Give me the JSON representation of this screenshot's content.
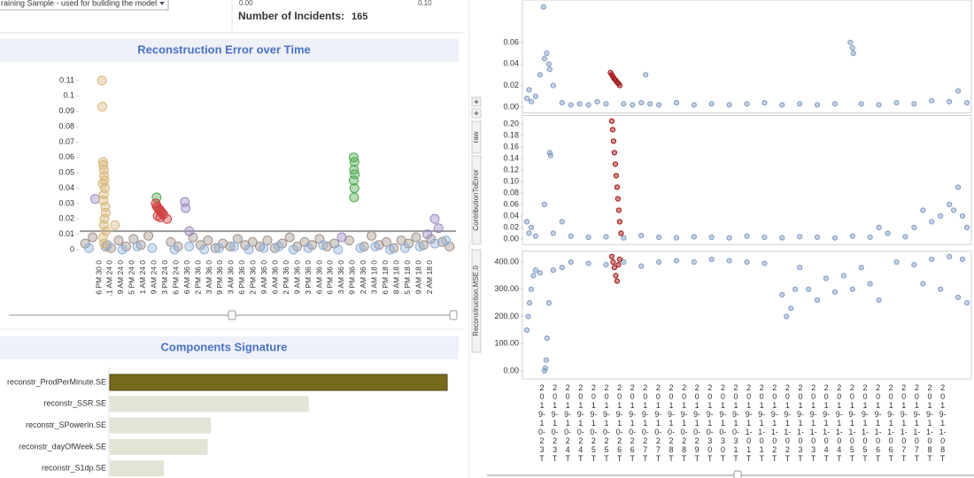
{
  "header": {
    "dropdown": "raining Sample - used for building the model",
    "range_min": "0.00",
    "range_max": "0.10",
    "incidents_label": "Number of Incidents:",
    "incidents_value": "165"
  },
  "side_tabs": [
    "raw",
    "ContributionToError",
    "Reconstruction.MSE.0"
  ],
  "chart_data": [
    {
      "type": "scatter",
      "title": "Reconstruction Error over Time",
      "categories": [
        "6 PM 30 0",
        ".1 AM 24 0",
        "9 AM 24 0",
        "5 PM 24 0",
        "1 AM 24 0",
        "9 AM 24 0",
        "3 PM 24 0",
        "6 PM 24 0",
        "6 AM 36 0",
        "2 PM 36 0",
        "3 AM 36 0",
        "9 PM 36 0",
        "3 AM 36 0",
        "6 PM 36 0",
        "2 PM 36 0",
        "9 AM 36 0",
        "6 AM 36 0",
        "2 PM 36 0",
        "9 AM 36 0",
        "3 PM 36 0",
        "6 AM 36 0",
        "6 PM 36 0",
        "3 AM 36 0",
        "9 PM 36 0",
        "2 AM 36 0",
        "3 AM 18 0",
        "6 PM 18 0",
        "8 AM 18 0",
        "5 PM 18 0",
        "9 AM 18 0",
        "2 AM 18 0"
      ],
      "xlim": [
        0,
        100
      ],
      "ylim": [
        -0.005,
        0.115
      ],
      "yticks": [
        0,
        0.01,
        0.02,
        0.03,
        0.04,
        0.05,
        0.06,
        0.07,
        0.08,
        0.09,
        0.1,
        0.11
      ],
      "reference_line": 0.012,
      "series": [
        {
          "color": "#a09088",
          "x": [
            1,
            3,
            6.5,
            8,
            10,
            12,
            14,
            16,
            18,
            24,
            26,
            30,
            32,
            34,
            36,
            38,
            40,
            42,
            44,
            46,
            48,
            50,
            52,
            54,
            56,
            58,
            60,
            62,
            64,
            66,
            68,
            72,
            76,
            78,
            80,
            82,
            84,
            86,
            88,
            90,
            92,
            94,
            97,
            99
          ],
          "values": [
            0.004,
            0.008,
            0.002,
            0.001,
            0.006,
            0.002,
            0.007,
            0.003,
            0.009,
            0.005,
            0.002,
            0.008,
            0.003,
            0.006,
            0.001,
            0.004,
            0.002,
            0.007,
            0.003,
            0.005,
            0.002,
            0.006,
            0.001,
            0.004,
            0.008,
            0.002,
            0.005,
            0.003,
            0.007,
            0.002,
            0.004,
            0.006,
            0.002,
            0.009,
            0.003,
            0.005,
            0.001,
            0.006,
            0.004,
            0.008,
            0.003,
            0.007,
            0.005,
            0.002
          ]
        },
        {
          "color": "#8fb0d8",
          "x": [
            2,
            7,
            11,
            15,
            19,
            25,
            29,
            33,
            37,
            41,
            45,
            49,
            53,
            57,
            61,
            65,
            69,
            75,
            79,
            83,
            87,
            91,
            95,
            98
          ],
          "values": [
            0.001,
            0.003,
            0,
            0.002,
            0.001,
            0,
            0.002,
            0,
            0.001,
            0.002,
            0,
            0.001,
            0.002,
            0,
            0.001,
            0.003,
            0,
            0.001,
            0.002,
            0,
            0.001,
            0.002,
            0.004,
            0.006
          ]
        },
        {
          "color": "#9a88c0",
          "x": [
            3.7,
            27.8,
            28,
            29,
            70,
            93,
            95,
            96
          ],
          "values": [
            0.033,
            0.031,
            0.027,
            0.012,
            0.008,
            0.01,
            0.02,
            0.014
          ]
        },
        {
          "color": "#d9b77a",
          "x": [
            5.5,
            5.6,
            5.8,
            5.9,
            6,
            6.1,
            6.2,
            5.7,
            6.3,
            6,
            5.9,
            6.4,
            6.5,
            6.2,
            6,
            6.6,
            9,
            5.8,
            6.1
          ],
          "values": [
            0.11,
            0.093,
            0.057,
            0.055,
            0.052,
            0.048,
            0.045,
            0.043,
            0.04,
            0.036,
            0.032,
            0.028,
            0.024,
            0.02,
            0.016,
            0.012,
            0.016,
            0.008,
            0.004
          ]
        },
        {
          "color": "#4caa4c",
          "x": [
            20.2,
            73.2,
            73.4,
            73.3,
            73.5,
            73.2,
            73.4,
            73.3
          ],
          "values": [
            0.034,
            0.06,
            0.057,
            0.052,
            0.049,
            0.045,
            0.04,
            0.034
          ]
        },
        {
          "color": "#d04040",
          "x": [
            20,
            20.3,
            20.6,
            21,
            21.3,
            21.6,
            22,
            20.5,
            21.2,
            23
          ],
          "values": [
            0.03,
            0.028,
            0.027,
            0.026,
            0.025,
            0.024,
            0.023,
            0.022,
            0.021,
            0.02
          ]
        }
      ]
    },
    {
      "type": "bar",
      "orientation": "horizontal",
      "title": "Components Signature",
      "categories": [
        "reconstr_ProdPerMinute.SE",
        "reconstr_SSR.SE",
        "reconstr_SPowerIn.SE",
        "reconstr_dayOfWeek.SE",
        "reconstr_S1dp.SE"
      ],
      "values": [
        100,
        59,
        30,
        29,
        16
      ],
      "colors": [
        "#786a1c",
        "#e4e4d6",
        "#e4e4d6",
        "#e4e4d6",
        "#e4e4d6"
      ]
    },
    {
      "type": "scatter",
      "xlim": [
        0,
        100
      ],
      "ylim": [
        -0.003,
        0.1
      ],
      "yticks": [
        {
          "value": 0,
          "label": "0.00"
        },
        {
          "value": 0.02,
          "label": "0.02"
        },
        {
          "value": 0.04,
          "label": "0.04"
        },
        {
          "value": 0.06,
          "label": "0.06"
        }
      ],
      "series": [
        {
          "color": "#7f9cc0",
          "x": [
            0,
            1,
            2,
            3,
            4,
            4.5,
            5,
            5.2,
            6,
            8,
            10,
            12,
            14,
            16,
            18,
            22,
            24,
            26,
            27,
            28,
            30,
            34,
            38,
            42,
            46,
            50,
            54,
            58,
            62,
            66,
            70,
            73.5,
            74,
            74.2,
            76,
            80,
            84,
            88,
            92,
            96,
            98,
            100,
            0.5,
            3.8
          ],
          "values": [
            0.008,
            0.005,
            0.01,
            0.03,
            0.045,
            0.05,
            0.04,
            0.035,
            0.02,
            0.004,
            0.002,
            0.003,
            0.002,
            0.005,
            0.003,
            0.003,
            0.002,
            0.004,
            0.03,
            0.003,
            0.002,
            0.004,
            0.002,
            0.003,
            0.002,
            0.003,
            0.004,
            0.002,
            0.003,
            0.002,
            0.003,
            0.06,
            0.055,
            0.05,
            0.003,
            0.002,
            0.004,
            0.003,
            0.006,
            0.005,
            0.015,
            0.004,
            0.016,
            0.093
          ]
        },
        {
          "color": "#a01010",
          "x": [
            19,
            19.3,
            19.6,
            19.9,
            20.2,
            20.5,
            20.8,
            21.1
          ],
          "values": [
            0.032,
            0.03,
            0.028,
            0.026,
            0.025,
            0.023,
            0.022,
            0.02
          ]
        }
      ]
    },
    {
      "type": "scatter",
      "xlim": [
        0,
        100
      ],
      "ylim": [
        -0.005,
        0.21
      ],
      "yticks": [
        {
          "value": 0,
          "label": "0.00"
        },
        {
          "value": 0.02,
          "label": "0.02"
        },
        {
          "value": 0.04,
          "label": "0.04"
        },
        {
          "value": 0.06,
          "label": "0.06"
        },
        {
          "value": 0.08,
          "label": "0.08"
        },
        {
          "value": 0.1,
          "label": "0.10"
        },
        {
          "value": 0.12,
          "label": "0.12"
        },
        {
          "value": 0.14,
          "label": "0.14"
        },
        {
          "value": 0.16,
          "label": "0.16"
        },
        {
          "value": 0.18,
          "label": "0.18"
        },
        {
          "value": 0.2,
          "label": "0.20"
        }
      ],
      "series": [
        {
          "color": "#7f9cc0",
          "x": [
            0,
            0.5,
            1,
            2,
            4,
            5.2,
            5.4,
            6,
            8,
            10,
            14,
            18,
            22,
            26,
            30,
            34,
            38,
            42,
            46,
            50,
            54,
            58,
            62,
            66,
            70,
            74,
            78,
            80,
            82,
            86,
            88,
            90,
            92,
            94,
            96,
            97,
            98,
            99,
            100
          ],
          "values": [
            0.03,
            0.01,
            0.02,
            0.005,
            0.06,
            0.15,
            0.145,
            0.01,
            0.03,
            0.005,
            0.003,
            0.004,
            0.002,
            0.006,
            0.003,
            0.002,
            0.004,
            0.003,
            0.002,
            0.005,
            0.003,
            0.002,
            0.004,
            0.003,
            0.002,
            0.005,
            0.003,
            0.02,
            0.01,
            0.004,
            0.02,
            0.05,
            0.03,
            0.04,
            0.06,
            0.05,
            0.09,
            0.04,
            0.02
          ]
        },
        {
          "color": "#a01010",
          "x": [
            19.3,
            19.5,
            19.7,
            19.9,
            20.1,
            20.3,
            20.5,
            20.7,
            20.9,
            21.1,
            21.4
          ],
          "values": [
            0.205,
            0.19,
            0.17,
            0.15,
            0.13,
            0.11,
            0.09,
            0.07,
            0.05,
            0.03,
            0.01
          ]
        }
      ]
    },
    {
      "type": "scatter",
      "xlim": [
        0,
        100
      ],
      "ylim": [
        -20,
        430
      ],
      "yticks": [
        {
          "value": 0,
          "label": "0.00"
        },
        {
          "value": 100,
          "label": "100.00"
        },
        {
          "value": 200,
          "label": "200.00"
        },
        {
          "value": 300,
          "label": "300.00"
        },
        {
          "value": 400,
          "label": "400.00"
        }
      ],
      "categories": [
        "2\n0\n1\n9-\n1\n0-\n2\n3\nT",
        "2\n0\n1\n9-\n1\n0-\n2\n3\nT",
        "2\n0\n1\n9-\n1\n0-\n2\n4\nT",
        "2\n0\n1\n9-\n1\n0-\n2\n4\nT",
        "2\n0\n1\n9-\n1\n0-\n2\n5\nT",
        "2\n0\n1\n9-\n1\n0-\n2\n5\nT",
        "2\n0\n1\n9-\n1\n0-\n2\n6\nT",
        "2\n0\n1\n9-\n1\n0-\n2\n6\nT",
        "2\n0\n1\n9-\n1\n0-\n2\n7\nT",
        "2\n0\n1\n9-\n1\n0-\n2\n7\nT",
        "2\n0\n1\n9-\n1\n0-\n2\n8\nT",
        "2\n0\n1\n9-\n1\n0-\n2\n8\nT",
        "2\n0\n1\n9-\n1\n0-\n2\n9\nT",
        "2\n0\n1\n9-\n1\n0-\n3\n0\nT",
        "2\n0\n1\n9-\n1\n0-\n3\n0\nT",
        "2\n0\n1\n9-\n1\n0-\n3\n1\nT",
        "2\n0\n1\n9-\n1\n1-\n0\n1\nT",
        "2\n0\n1\n9-\n1\n1-\n0\n1\nT",
        "2\n0\n1\n9-\n1\n1-\n0\n2\nT",
        "2\n0\n1\n9-\n1\n1-\n0\n2\nT",
        "2\n0\n1\n9-\n1\n1-\n0\n3\nT",
        "2\n0\n1\n9-\n1\n1-\n0\n3\nT",
        "2\n0\n1\n9-\n1\n1-\n0\n4\nT",
        "2\n0\n1\n9-\n1\n1-\n0\n4\nT",
        "2\n0\n1\n9-\n1\n1-\n0\n5\nT",
        "2\n0\n1\n9-\n1\n1-\n0\n5\nT",
        "2\n0\n1\n9-\n1\n1-\n0\n6\nT",
        "2\n0\n1\n9-\n1\n1-\n0\n6\nT",
        "2\n0\n1\n9-\n1\n1-\n0\n7\nT",
        "2\n0\n1\n9-\n1\n1-\n0\n7\nT",
        "2\n0\n1\n9-\n1\n1-\n0\n8\nT",
        "2\n0\n1\n9-\n1\n1-\n0\n8\nT"
      ],
      "series": [
        {
          "color": "#7f9cc0",
          "x": [
            0,
            0.3,
            0.6,
            1,
            1.5,
            2,
            3,
            4,
            4.2,
            4.4,
            4.6,
            5,
            6,
            8,
            10,
            14,
            18,
            22,
            26,
            30,
            34,
            38,
            42,
            46,
            50,
            54,
            58,
            59,
            60,
            61,
            62,
            64,
            66,
            68,
            70,
            72,
            74,
            76,
            78,
            80,
            84,
            88,
            90,
            92,
            94,
            96,
            98,
            99,
            100
          ],
          "values": [
            150,
            200,
            250,
            300,
            350,
            370,
            360,
            0,
            10,
            40,
            120,
            250,
            370,
            380,
            400,
            395,
            390,
            400,
            385,
            400,
            405,
            400,
            410,
            405,
            400,
            395,
            280,
            200,
            230,
            300,
            380,
            300,
            260,
            340,
            290,
            350,
            300,
            380,
            320,
            260,
            400,
            390,
            320,
            410,
            300,
            420,
            270,
            410,
            250
          ]
        },
        {
          "color": "#a01010",
          "x": [
            19.3,
            19.6,
            19.9,
            20.2,
            20.5,
            20.8,
            21.1
          ],
          "values": [
            420,
            400,
            380,
            350,
            330,
            390,
            410
          ]
        }
      ]
    }
  ]
}
